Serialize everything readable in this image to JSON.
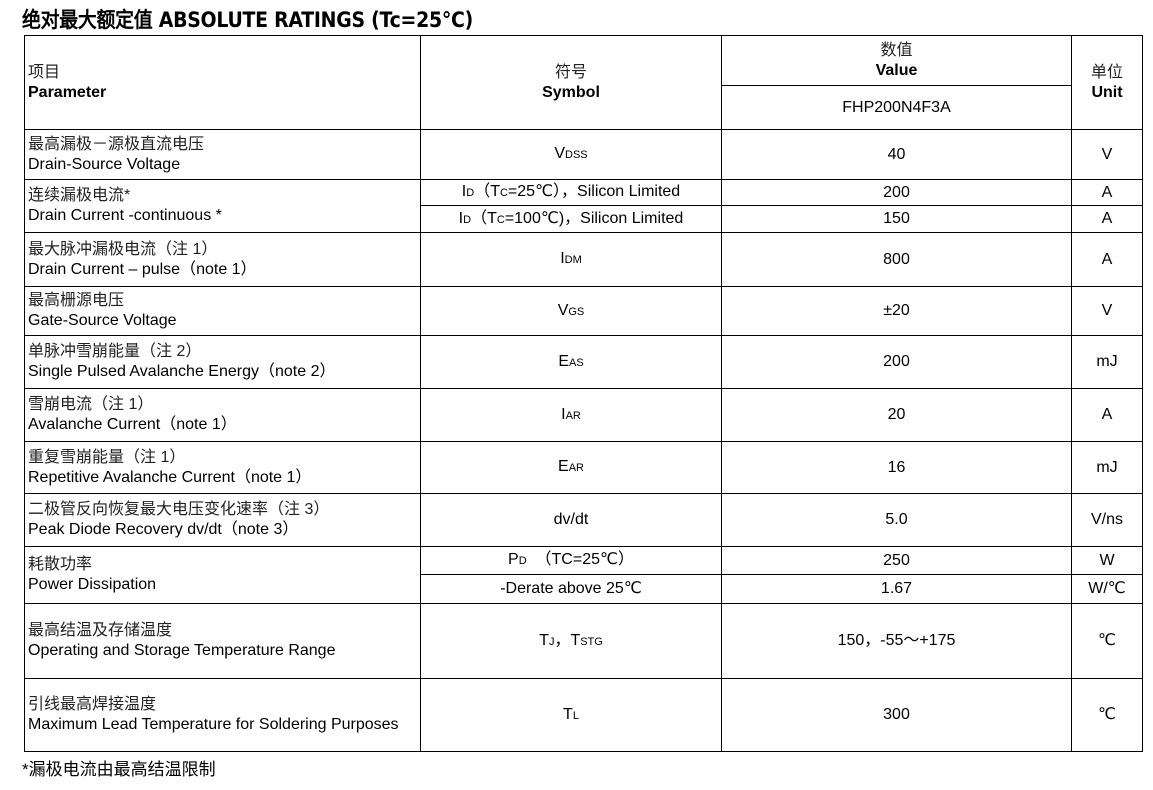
{
  "title": "绝对最大额定值 ABSOLUTE RATINGS (Tc=25°C)",
  "header": {
    "parameter_cn": "项目",
    "parameter_en": "Parameter",
    "symbol_cn": "符号",
    "symbol_en": "Symbol",
    "value_cn": "数值",
    "value_en": "Value",
    "part_number": "FHP200N4F3A",
    "unit_cn": "单位",
    "unit_en": "Unit"
  },
  "rows": [
    {
      "cn": "最高漏极－源极直流电压",
      "en": "Drain-Source Voltage",
      "items": [
        {
          "symbol": [
            [
              "V",
              0
            ],
            [
              "DSS",
              1
            ]
          ],
          "value": "40",
          "unit": "V"
        }
      ]
    },
    {
      "cn": "连续漏极电流*",
      "en": "Drain Current -continuous *",
      "items": [
        {
          "symbol": [
            [
              "I",
              0
            ],
            [
              "D",
              1
            ],
            [
              "（T",
              0
            ],
            [
              "C",
              1
            ],
            [
              "=25℃），Silicon Limited",
              0
            ]
          ],
          "value": "200",
          "unit": "A"
        },
        {
          "symbol": [
            [
              "I",
              0
            ],
            [
              "D",
              1
            ],
            [
              "（T",
              0
            ],
            [
              "C",
              1
            ],
            [
              "=100℃)，Silicon Limited",
              0
            ]
          ],
          "value": "150",
          "unit": "A"
        }
      ]
    },
    {
      "cn": "最大脉冲漏极电流（注 1）",
      "en": "Drain Current – pulse（note 1）",
      "items": [
        {
          "symbol": [
            [
              "I",
              0
            ],
            [
              "DM",
              1
            ]
          ],
          "value": "800",
          "unit": "A"
        }
      ]
    },
    {
      "cn": "最高栅源电压",
      "en": "Gate-Source Voltage",
      "items": [
        {
          "symbol": [
            [
              "V",
              0
            ],
            [
              "GS",
              1
            ]
          ],
          "value": "±20",
          "unit": "V"
        }
      ]
    },
    {
      "cn": "单脉冲雪崩能量（注 2）",
      "en": "Single Pulsed Avalanche Energy（note 2）",
      "items": [
        {
          "symbol": [
            [
              "E",
              0
            ],
            [
              "AS",
              1
            ]
          ],
          "value": "200",
          "unit": "mJ"
        }
      ]
    },
    {
      "cn": "雪崩电流（注 1）",
      "en": "Avalanche Current（note 1）",
      "items": [
        {
          "symbol": [
            [
              "I",
              0
            ],
            [
              "AR",
              1
            ]
          ],
          "value": "20",
          "unit": "A"
        }
      ]
    },
    {
      "cn": "重复雪崩能量（注 1）",
      "en": "Repetitive Avalanche Current（note 1）",
      "items": [
        {
          "symbol": [
            [
              "E",
              0
            ],
            [
              "AR",
              1
            ]
          ],
          "value": "16",
          "unit": "mJ"
        }
      ]
    },
    {
      "cn": "二极管反向恢复最大电压变化速率（注 3）",
      "en": " Peak Diode Recovery dv/dt（note 3）",
      "items": [
        {
          "symbol": [
            [
              "dv/dt",
              0
            ]
          ],
          "value": "5.0",
          "unit": "V/ns"
        }
      ]
    },
    {
      "cn": "耗散功率",
      "en": "Power Dissipation",
      "items": [
        {
          "symbol": [
            [
              "P",
              0
            ],
            [
              "D",
              1
            ],
            [
              "  （TC=25℃）",
              0
            ]
          ],
          "value": "250",
          "unit": "W"
        },
        {
          "symbol": [
            [
              "-Derate above 25℃",
              0
            ]
          ],
          "value": "1.67",
          "unit": "W/℃"
        }
      ]
    },
    {
      "cn": "最高结温及存储温度",
      "en": "Operating and Storage Temperature Range",
      "items": [
        {
          "symbol": [
            [
              "T",
              0
            ],
            [
              "J",
              1
            ],
            [
              "，T",
              0
            ],
            [
              "STG",
              1
            ]
          ],
          "value": "150，-55～+175",
          "unit": "℃"
        }
      ]
    },
    {
      "cn": "引线最高焊接温度",
      "en": "Maximum Lead Temperature for Soldering Purposes",
      "items": [
        {
          "symbol": [
            [
              "T",
              0
            ],
            [
              "L",
              1
            ]
          ],
          "value": "300",
          "unit": "℃"
        }
      ]
    }
  ],
  "footer": "*漏极电流由最高结温限制"
}
